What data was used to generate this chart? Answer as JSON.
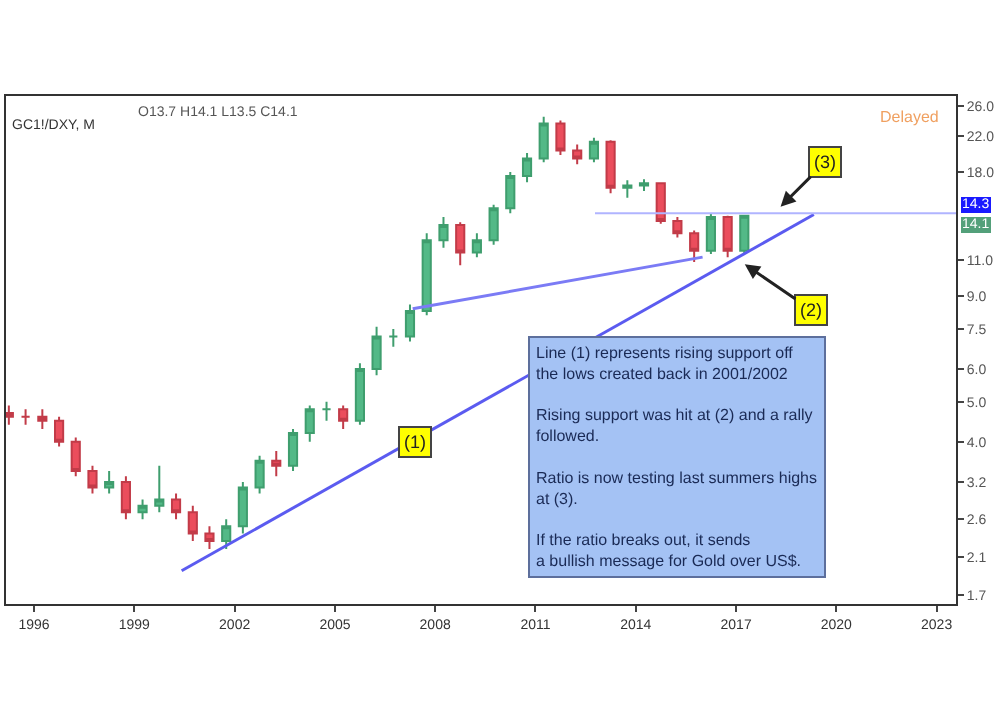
{
  "chart_data": {
    "type": "candlestick",
    "title": "GC1!/DXY, M",
    "x": [
      "1995-04",
      "1995-10",
      "1996-04",
      "1996-10",
      "1997-04",
      "1997-10",
      "1998-04",
      "1998-10",
      "1999-04",
      "1999-10",
      "2000-04",
      "2000-10",
      "2001-04",
      "2001-10",
      "2002-04",
      "2002-10",
      "2003-04",
      "2003-10",
      "2004-04",
      "2004-10",
      "2005-04",
      "2005-10",
      "2006-04",
      "2006-10",
      "2007-04",
      "2007-10",
      "2008-04",
      "2008-10",
      "2009-04",
      "2009-10",
      "2010-04",
      "2010-10",
      "2011-04",
      "2011-10",
      "2012-04",
      "2012-10",
      "2013-04",
      "2013-10",
      "2014-04",
      "2014-10",
      "2015-04",
      "2015-10",
      "2016-04",
      "2016-10",
      "2017-04"
    ],
    "ohlc": [
      [
        4.7,
        4.9,
        4.4,
        4.6
      ],
      [
        4.6,
        4.8,
        4.4,
        4.6
      ],
      [
        4.6,
        4.8,
        4.3,
        4.5
      ],
      [
        4.5,
        4.6,
        3.9,
        4.0
      ],
      [
        4.0,
        4.1,
        3.3,
        3.4
      ],
      [
        3.4,
        3.5,
        3.0,
        3.1
      ],
      [
        3.1,
        3.4,
        3.0,
        3.2
      ],
      [
        3.2,
        3.3,
        2.6,
        2.7
      ],
      [
        2.7,
        2.9,
        2.6,
        2.8
      ],
      [
        2.8,
        3.5,
        2.7,
        2.9
      ],
      [
        2.9,
        3.0,
        2.6,
        2.7
      ],
      [
        2.7,
        2.8,
        2.3,
        2.4
      ],
      [
        2.4,
        2.5,
        2.2,
        2.3
      ],
      [
        2.3,
        2.6,
        2.2,
        2.5
      ],
      [
        2.5,
        3.2,
        2.4,
        3.1
      ],
      [
        3.1,
        3.7,
        3.0,
        3.6
      ],
      [
        3.6,
        3.8,
        3.3,
        3.5
      ],
      [
        3.5,
        4.3,
        3.4,
        4.2
      ],
      [
        4.2,
        4.9,
        4.0,
        4.8
      ],
      [
        4.8,
        5.0,
        4.5,
        4.8
      ],
      [
        4.8,
        4.9,
        4.3,
        4.5
      ],
      [
        4.5,
        6.2,
        4.4,
        6.0
      ],
      [
        6.0,
        7.6,
        5.8,
        7.2
      ],
      [
        7.2,
        7.5,
        6.8,
        7.2
      ],
      [
        7.2,
        8.6,
        7.0,
        8.3
      ],
      [
        8.3,
        12.8,
        8.1,
        12.3
      ],
      [
        12.3,
        14.0,
        11.8,
        13.4
      ],
      [
        13.4,
        13.6,
        10.7,
        11.5
      ],
      [
        11.5,
        12.8,
        11.2,
        12.3
      ],
      [
        12.3,
        15.0,
        12.0,
        14.7
      ],
      [
        14.7,
        18.0,
        14.3,
        17.6
      ],
      [
        17.6,
        20.0,
        17.0,
        19.4
      ],
      [
        19.4,
        24.5,
        19.0,
        23.6
      ],
      [
        23.6,
        24.0,
        19.8,
        20.3
      ],
      [
        20.3,
        21.0,
        18.8,
        19.4
      ],
      [
        19.4,
        21.8,
        19.0,
        21.3
      ],
      [
        21.3,
        21.5,
        16.0,
        16.5
      ],
      [
        16.5,
        17.2,
        15.6,
        16.7
      ],
      [
        16.7,
        17.3,
        16.2,
        16.9
      ],
      [
        16.9,
        17.0,
        13.5,
        13.7
      ],
      [
        13.7,
        14.0,
        12.5,
        12.8
      ],
      [
        12.8,
        13.0,
        10.9,
        11.6
      ],
      [
        11.6,
        14.3,
        11.4,
        14.0
      ],
      [
        14.0,
        14.1,
        11.2,
        11.6
      ],
      [
        11.6,
        14.1,
        11.4,
        14.1
      ]
    ],
    "series": [
      {
        "type": "line",
        "color": "#5b5bf0",
        "x": [
          "2000-06",
          "2019-05"
        ],
        "values": [
          1.95,
          14.2
        ]
      },
      {
        "type": "line",
        "color": "#7b7bf5",
        "x": [
          "2007-05",
          "2016-01"
        ],
        "values": [
          8.4,
          11.2
        ]
      }
    ],
    "ref_lines": [
      {
        "axis": "y",
        "value": 14.3,
        "label": "14.3",
        "color": "#b0b4ff"
      }
    ],
    "annotations": [
      "O13.7 H14.1 L13.5 C14.1",
      "Delayed",
      "Line (1) represents rising support off\nthe lows created back in 2001/2002\n\nRising support was hit at (2) and a rally\nfollowed.\n\nRatio is now testing last summers highs\nat (3).\n\nIf the ratio breaks out, it sends\na bullish message for Gold over US$.",
      {
        "text": "(1)",
        "x": "2007-06",
        "y": 4.0
      },
      {
        "text": "(2)",
        "x": "2017-03",
        "y": 10.9
      },
      {
        "text": "(3)",
        "x": "2018-04",
        "y": 14.6
      },
      "14.1"
    ],
    "xlim": [
      "1995-03",
      "2023-08"
    ],
    "ylim": [
      1.62,
      27.5
    ],
    "log": true,
    "xticks": [
      "1996",
      "1999",
      "2002",
      "2005",
      "2008",
      "2011",
      "2014",
      "2017",
      "2020",
      "2023"
    ],
    "yticks": [
      {
        "value": 26,
        "label": "26.0"
      },
      {
        "value": 22,
        "label": "22.0"
      },
      {
        "value": 18,
        "label": "18.0"
      },
      {
        "value": 11,
        "label": "11.0"
      },
      {
        "value": 9,
        "label": "9.0"
      },
      7.5,
      {
        "value": 6,
        "label": "6.0"
      },
      {
        "value": 5,
        "label": "5.0"
      },
      {
        "value": 4,
        "label": "4.0"
      },
      3.2,
      2.6,
      2.1,
      1.7
    ],
    "grid": false
  }
}
